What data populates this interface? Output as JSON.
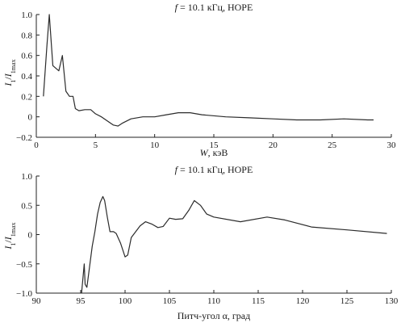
{
  "chart_data": [
    {
      "type": "line",
      "title_italic": "f",
      "title_rest": " = 10.1 кГц, HOPE",
      "xlabel_italic": "W",
      "xlabel_rest": ", кэВ",
      "ylabel_i": "I",
      "ylabel_sub1": "1",
      "ylabel_slash": "/",
      "ylabel_i2": "I",
      "ylabel_sub2": "1max",
      "xlim": [
        0,
        30
      ],
      "ylim": [
        -0.2,
        1.0
      ],
      "xticks": [
        0,
        5,
        10,
        15,
        20,
        25,
        30
      ],
      "yticks": [
        -0.2,
        0,
        0.2,
        0.4,
        0.6,
        0.8,
        1.0
      ],
      "xtick_labels": [
        "0",
        "5",
        "10",
        "15",
        "20",
        "25",
        "30"
      ],
      "ytick_labels": [
        "−0.2",
        "0",
        "0.2",
        "0.4",
        "0.6",
        "0.8",
        "1.0"
      ],
      "x": [
        0.6,
        0.9,
        1.1,
        1.4,
        1.9,
        2.2,
        2.5,
        2.8,
        3.1,
        3.3,
        3.6,
        4.1,
        4.6,
        5.0,
        5.5,
        6.0,
        6.5,
        6.9,
        7.3,
        8.0,
        9.0,
        10.0,
        11.0,
        12.0,
        13.0,
        14.0,
        16.0,
        18.0,
        20.0,
        22.0,
        24.0,
        26.0,
        28.0,
        28.5
      ],
      "y": [
        0.2,
        0.7,
        1.0,
        0.5,
        0.45,
        0.6,
        0.25,
        0.2,
        0.2,
        0.08,
        0.06,
        0.07,
        0.07,
        0.03,
        0.0,
        -0.04,
        -0.08,
        -0.09,
        -0.06,
        -0.02,
        0.0,
        0.0,
        0.02,
        0.04,
        0.04,
        0.02,
        0.0,
        -0.01,
        -0.02,
        -0.03,
        -0.03,
        -0.02,
        -0.03,
        -0.03
      ]
    },
    {
      "type": "line",
      "title_italic": "f",
      "title_rest": " = 10.1 кГц, HOPE",
      "xlabel_italic": "",
      "xlabel_rest": "Питч-угол α, град",
      "ylabel_i": "I",
      "ylabel_sub1": "1",
      "ylabel_slash": "/",
      "ylabel_i2": "I",
      "ylabel_sub2": "1max",
      "xlim": [
        90,
        130
      ],
      "ylim": [
        -1.0,
        1.0
      ],
      "xticks": [
        90,
        95,
        100,
        105,
        110,
        115,
        120,
        125,
        130
      ],
      "yticks": [
        -1.0,
        -0.5,
        0,
        0.5,
        1.0
      ],
      "xtick_labels": [
        "90",
        "95",
        "100",
        "105",
        "110",
        "115",
        "120",
        "125",
        "130"
      ],
      "ytick_labels": [
        "−1.0",
        "−0.5",
        "0",
        "0.5",
        "1.0"
      ],
      "x": [
        95.1,
        95.4,
        95.5,
        95.7,
        96.0,
        96.3,
        96.6,
        96.9,
        97.2,
        97.5,
        97.7,
        98.0,
        98.3,
        98.7,
        99.0,
        99.5,
        100.0,
        100.3,
        100.7,
        101.2,
        101.7,
        102.3,
        103.0,
        103.7,
        104.3,
        105.0,
        105.7,
        106.5,
        107.2,
        107.8,
        108.5,
        109.2,
        110.0,
        113.0,
        116.0,
        118.0,
        121.0,
        125.0,
        129.5
      ],
      "y": [
        -1.0,
        -0.5,
        -0.85,
        -0.9,
        -0.55,
        -0.2,
        0.05,
        0.35,
        0.55,
        0.65,
        0.58,
        0.3,
        0.05,
        0.05,
        0.02,
        -0.15,
        -0.38,
        -0.35,
        -0.05,
        0.05,
        0.15,
        0.22,
        0.18,
        0.12,
        0.14,
        0.28,
        0.26,
        0.27,
        0.42,
        0.58,
        0.5,
        0.35,
        0.3,
        0.22,
        0.3,
        0.25,
        0.13,
        0.08,
        0.02
      ]
    }
  ]
}
